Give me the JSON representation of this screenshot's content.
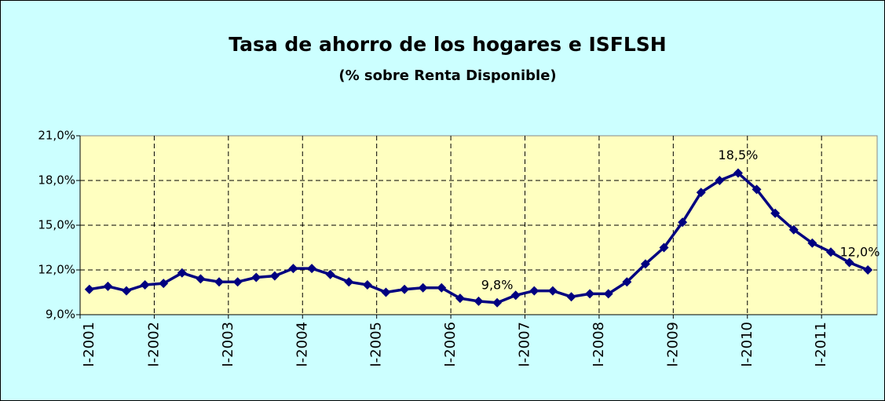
{
  "chart_data": {
    "type": "line",
    "title": "Tasa de ahorro de los hogares e ISFLSH",
    "subtitle": "(% sobre Renta Disponible)",
    "categories": [
      "I-2001",
      null,
      null,
      null,
      "I-2002",
      null,
      null,
      null,
      "I-2003",
      null,
      null,
      null,
      "I-2004",
      null,
      null,
      null,
      "I-2005",
      null,
      null,
      null,
      "I-2006",
      null,
      null,
      null,
      "I-2007",
      null,
      null,
      null,
      "I-2008",
      null,
      null,
      null,
      "I-2009",
      null,
      null,
      null,
      "I-2010",
      null,
      null,
      null,
      "I-2011",
      null,
      null
    ],
    "series": [
      {
        "color": "#000080",
        "values": [
          10.7,
          10.9,
          10.6,
          11.0,
          11.1,
          11.8,
          11.4,
          11.2,
          11.2,
          11.5,
          11.6,
          12.1,
          12.1,
          11.7,
          11.2,
          11.0,
          10.5,
          10.7,
          10.8,
          10.8,
          10.1,
          9.9,
          9.8,
          10.3,
          10.6,
          10.6,
          10.2,
          10.4,
          10.4,
          11.2,
          12.4,
          13.5,
          15.2,
          17.2,
          18.0,
          18.5,
          17.4,
          15.8,
          14.7,
          13.8,
          13.2,
          12.5,
          12.0
        ],
        "value_labels": [
          null,
          null,
          null,
          null,
          null,
          null,
          null,
          null,
          null,
          null,
          null,
          null,
          null,
          null,
          null,
          null,
          null,
          null,
          null,
          null,
          null,
          null,
          "9,8%",
          null,
          null,
          null,
          null,
          null,
          null,
          null,
          null,
          null,
          null,
          null,
          null,
          "18,5%",
          null,
          null,
          null,
          null,
          null,
          null,
          "12,0%"
        ]
      }
    ],
    "ylim": [
      9,
      21
    ],
    "yticks": [
      {
        "value": 9,
        "label": "9,0%"
      },
      {
        "value": 12,
        "label": "12,0%"
      },
      {
        "value": 15,
        "label": "15,0%"
      },
      {
        "value": 18,
        "label": "18,0%"
      },
      {
        "value": 21,
        "label": "21,0%"
      }
    ],
    "grid": true
  }
}
